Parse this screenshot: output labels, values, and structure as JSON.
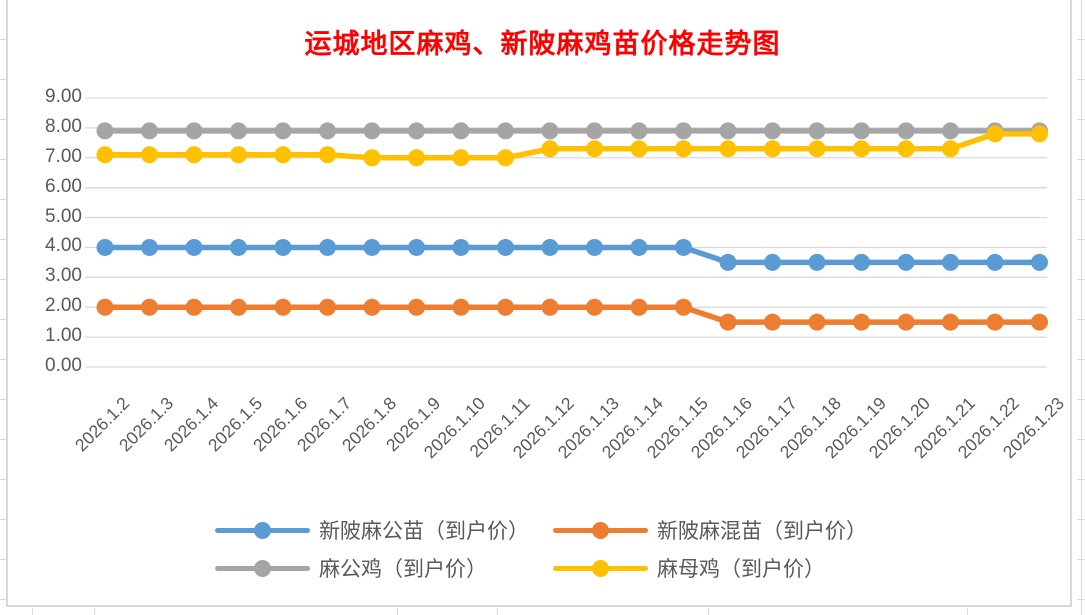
{
  "chart_data": {
    "type": "line",
    "title": "运城地区麻鸡、新陂麻鸡苗价格走势图",
    "title_color": "#FF0000",
    "categories": [
      "2026.1.2",
      "2026.1.3",
      "2026.1.4",
      "2026.1.5",
      "2026.1.6",
      "2026.1.7",
      "2026.1.8",
      "2026.1.9",
      "2026.1.10",
      "2026.1.11",
      "2026.1.12",
      "2026.1.13",
      "2026.1.14",
      "2026.1.15",
      "2026.1.16",
      "2026.1.17",
      "2026.1.18",
      "2026.1.19",
      "2026.1.20",
      "2026.1.21",
      "2026.1.22",
      "2026.1.23"
    ],
    "series": [
      {
        "name": "新陂麻公苗（到户价）",
        "color": "#5B9BD5",
        "values": [
          4.0,
          4.0,
          4.0,
          4.0,
          4.0,
          4.0,
          4.0,
          4.0,
          4.0,
          4.0,
          4.0,
          4.0,
          4.0,
          4.0,
          3.5,
          3.5,
          3.5,
          3.5,
          3.5,
          3.5,
          3.5,
          3.5
        ]
      },
      {
        "name": "新陂麻混苗（到户价）",
        "color": "#ED7D31",
        "values": [
          2.0,
          2.0,
          2.0,
          2.0,
          2.0,
          2.0,
          2.0,
          2.0,
          2.0,
          2.0,
          2.0,
          2.0,
          2.0,
          2.0,
          1.5,
          1.5,
          1.5,
          1.5,
          1.5,
          1.5,
          1.5,
          1.5
        ]
      },
      {
        "name": "麻公鸡（到户价）",
        "color": "#A5A5A5",
        "values": [
          7.9,
          7.9,
          7.9,
          7.9,
          7.9,
          7.9,
          7.9,
          7.9,
          7.9,
          7.9,
          7.9,
          7.9,
          7.9,
          7.9,
          7.9,
          7.9,
          7.9,
          7.9,
          7.9,
          7.9,
          7.9,
          7.9
        ]
      },
      {
        "name": "麻母鸡（到户价）",
        "color": "#FFC000",
        "values": [
          7.1,
          7.1,
          7.1,
          7.1,
          7.1,
          7.1,
          7.0,
          7.0,
          7.0,
          7.0,
          7.3,
          7.3,
          7.3,
          7.3,
          7.3,
          7.3,
          7.3,
          7.3,
          7.3,
          7.3,
          7.8,
          7.8
        ]
      }
    ],
    "ylim": [
      0,
      9
    ],
    "y_ticks": [
      "9.00",
      "8.00",
      "7.00",
      "6.00",
      "5.00",
      "4.00",
      "3.00",
      "2.00",
      "1.00",
      "0.00"
    ],
    "grid": true,
    "gridline_color": "#D9D9D9",
    "axis_label_color": "#595959",
    "legend_position": "bottom"
  }
}
